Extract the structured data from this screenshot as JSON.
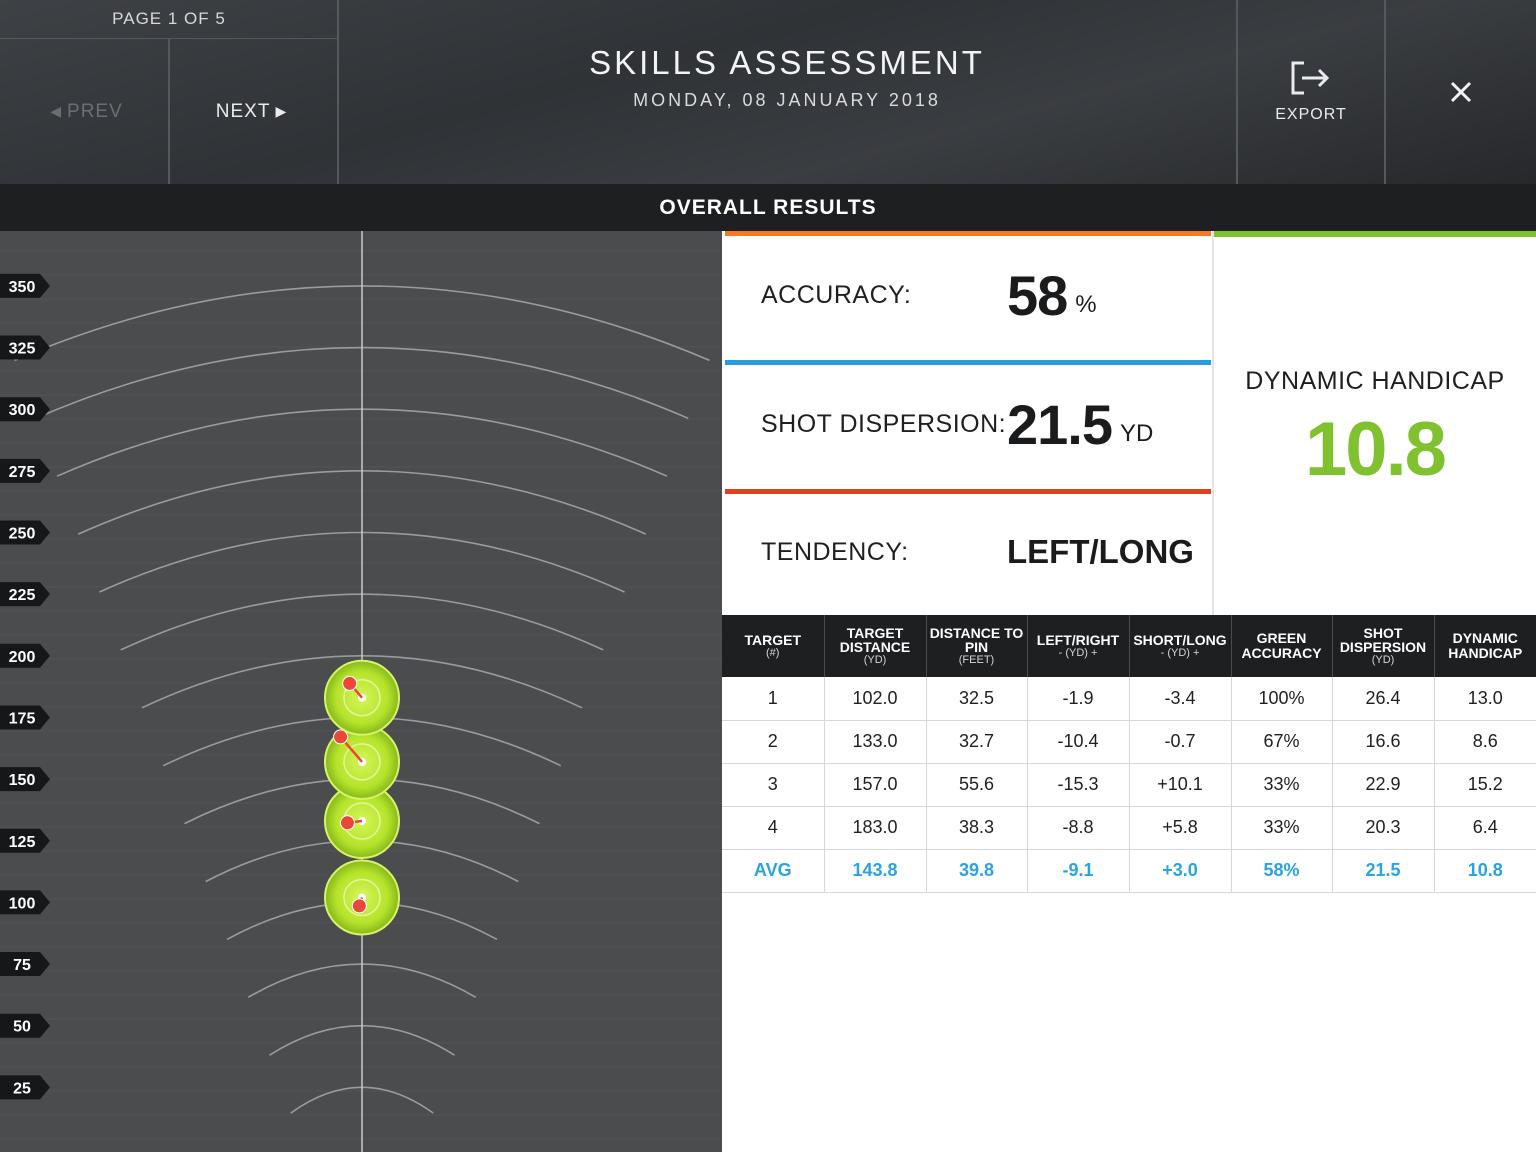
{
  "header": {
    "page_indicator": "PAGE 1 OF 5",
    "prev_label": "PREV",
    "next_label": "NEXT",
    "title": "SKILLS ASSESSMENT",
    "date": "MONDAY, 08 JANUARY 2018",
    "export_label": "EXPORT",
    "icons": {
      "export": "export-icon",
      "close": "close-icon"
    }
  },
  "section": {
    "title": "OVERALL RESULTS"
  },
  "stats": {
    "accuracy": {
      "label": "ACCURACY:",
      "value": "58",
      "unit": "%"
    },
    "dispersion": {
      "label": "SHOT DISPERSION:",
      "value": "21.5",
      "unit": "YD"
    },
    "tendency": {
      "label": "TENDENCY:",
      "value": "LEFT/LONG"
    },
    "handicap": {
      "label": "DYNAMIC HANDICAP",
      "value": "10.8"
    }
  },
  "colors": {
    "accuracy_bar": "#f47a2a",
    "dispersion_bar": "#2c9be0",
    "tendency_bar": "#e2401f",
    "handicap": "#7fc12e",
    "avg_text": "#2aa4dc",
    "target_green": "#b5e32a",
    "shot_red": "#e8473a"
  },
  "table": {
    "headers": [
      {
        "main": "TARGET",
        "sub": "(#)"
      },
      {
        "main": "TARGET DISTANCE",
        "sub": "(YD)"
      },
      {
        "main": "DISTANCE TO PIN",
        "sub": "(FEET)"
      },
      {
        "main": "LEFT/RIGHT",
        "sub": "- (YD) +"
      },
      {
        "main": "SHORT/LONG",
        "sub": "- (YD) +"
      },
      {
        "main": "GREEN ACCURACY",
        "sub": ""
      },
      {
        "main": "SHOT DISPERSION",
        "sub": "(YD)"
      },
      {
        "main": "DYNAMIC HANDICAP",
        "sub": ""
      }
    ],
    "rows": [
      [
        "1",
        "102.0",
        "32.5",
        "-1.9",
        "-3.4",
        "100%",
        "26.4",
        "13.0"
      ],
      [
        "2",
        "133.0",
        "32.7",
        "-10.4",
        "-0.7",
        "67%",
        "16.6",
        "8.6"
      ],
      [
        "3",
        "157.0",
        "55.6",
        "-15.3",
        "+10.1",
        "33%",
        "22.9",
        "15.2"
      ],
      [
        "4",
        "183.0",
        "38.3",
        "-8.8",
        "+5.8",
        "33%",
        "20.3",
        "6.4"
      ]
    ],
    "avg": [
      "AVG",
      "143.8",
      "39.8",
      "-9.1",
      "+3.0",
      "58%",
      "21.5",
      "10.8"
    ]
  },
  "range_chart": {
    "distance_markers": [
      "350",
      "325",
      "300",
      "275",
      "250",
      "225",
      "200",
      "175",
      "150",
      "125",
      "100",
      "75",
      "50",
      "25"
    ],
    "targets": [
      {
        "distance": 102,
        "shots": [
          {
            "lr": -1.9,
            "sl": -3.4
          }
        ]
      },
      {
        "distance": 133,
        "shots": [
          {
            "lr": -10.4,
            "sl": -0.7
          }
        ]
      },
      {
        "distance": 157,
        "shots": [
          {
            "lr": -15.3,
            "sl": 10.1
          }
        ]
      },
      {
        "distance": 183,
        "shots": [
          {
            "lr": -8.8,
            "sl": 5.8
          }
        ]
      }
    ]
  }
}
